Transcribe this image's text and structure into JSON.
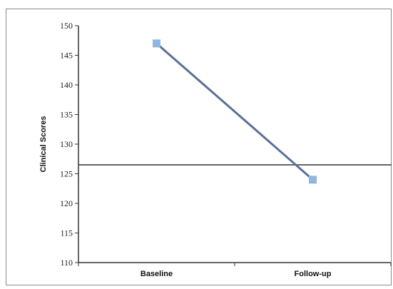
{
  "chart_data": {
    "type": "line",
    "categories": [
      "Baseline",
      "Follow-up"
    ],
    "series": [
      {
        "values": [
          147,
          124
        ]
      }
    ],
    "reference_line": {
      "value": 126.5
    },
    "ylabel": "Clinical Scores",
    "xlabel": "",
    "ylim": [
      110,
      150
    ],
    "yticks": [
      110,
      115,
      120,
      125,
      130,
      135,
      140,
      145,
      150
    ],
    "grid": false,
    "colors": {
      "line": "#5b6f96",
      "marker": "#8fb6e0",
      "reference": "#333333",
      "axis": "#333333"
    }
  }
}
